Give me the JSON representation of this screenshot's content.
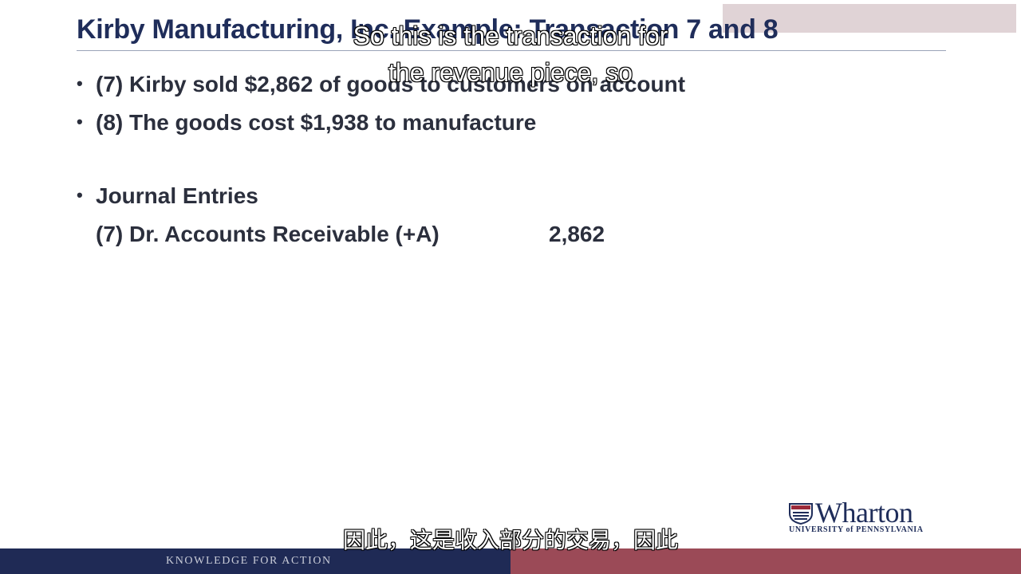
{
  "slide": {
    "title": "Kirby Manufacturing, Inc. Example: Transaction 7 and 8",
    "bullets": [
      "(7) Kirby sold $2,862 of goods to customers on account",
      "(8) The goods cost $1,938 to manufacture",
      "Journal Entries"
    ],
    "journal_entry": {
      "account": "(7) Dr. Accounts Receivable (+A)",
      "amount": "2,862"
    }
  },
  "subtitles": {
    "english_line_1": "So this is the transaction for",
    "english_line_2": "the revenue piece, so",
    "chinese": "因此，这是收入部分的交易，因此"
  },
  "logo": {
    "wordmark": "Wharton",
    "subtext": "UNIVERSITY of PENNSYLVANIA"
  },
  "footer": {
    "tagline": "KNOWLEDGE FOR ACTION"
  },
  "colors": {
    "title": "#1f2d5a",
    "footer_navy": "#1f2a55",
    "footer_red": "#9b4a57"
  },
  "icons": {
    "logo_mark": "wharton-shield-icon"
  }
}
